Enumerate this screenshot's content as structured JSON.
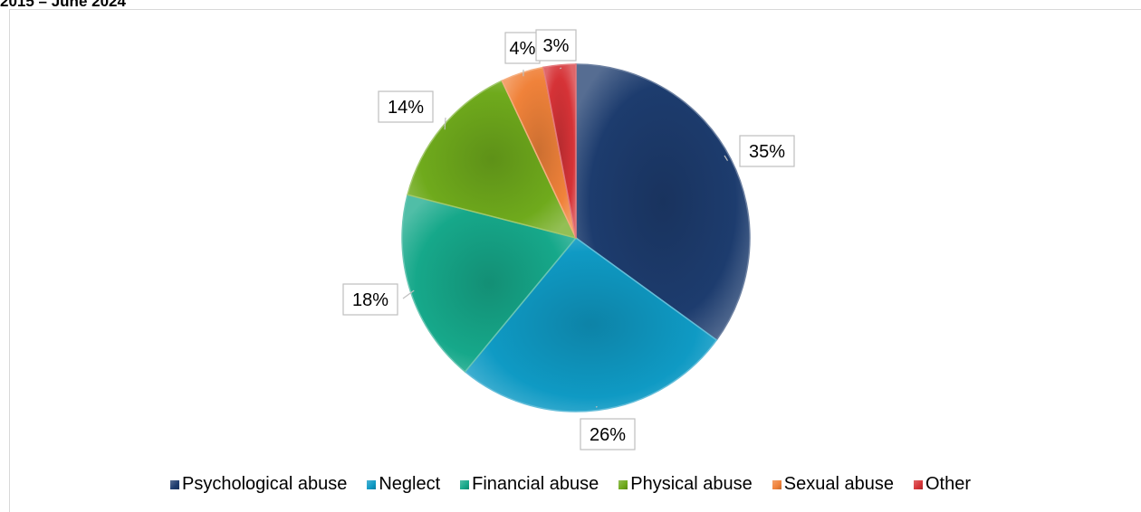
{
  "header": {
    "title_fragment": "2015 – June 2024"
  },
  "chart_data": {
    "type": "pie",
    "categories": [
      "Psychological abuse",
      "Neglect",
      "Financial abuse",
      "Physical abuse",
      "Sexual abuse",
      "Other"
    ],
    "values": [
      35,
      26,
      18,
      14,
      4,
      3
    ],
    "data_labels": [
      "35%",
      "26%",
      "18%",
      "14%",
      "4%",
      "3%"
    ],
    "colors": [
      "#1d3c6e",
      "#0f9ac4",
      "#16a88a",
      "#6faa1c",
      "#f0823a",
      "#d63337"
    ],
    "legend_position": "bottom"
  }
}
